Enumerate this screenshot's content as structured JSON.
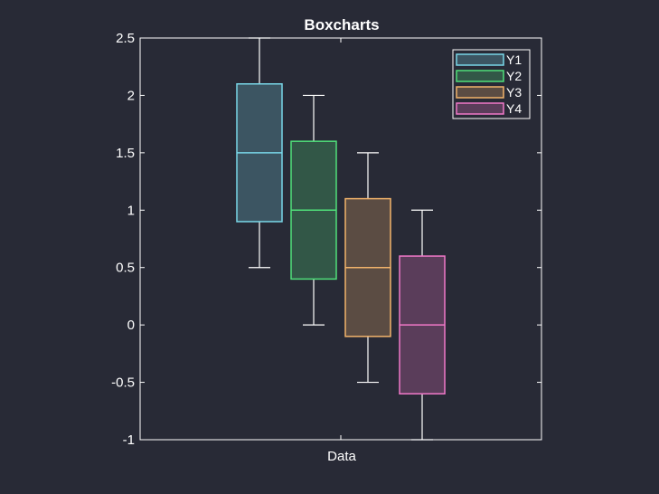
{
  "chart_data": {
    "type": "boxchart",
    "title": "Boxcharts",
    "xlabel": "",
    "ylabel": "",
    "categories": [
      "Data"
    ],
    "ylim": [
      -1,
      2.5
    ],
    "yticks": [
      -1,
      -0.5,
      0,
      0.5,
      1,
      1.5,
      2,
      2.5
    ],
    "ytick_labels": [
      "-1",
      "-0.5",
      "0",
      "0.5",
      "1",
      "1.5",
      "2",
      "2.5"
    ],
    "grid": false,
    "legend_position": "top-right",
    "series": [
      {
        "name": "Y1",
        "color": "#79d7e8",
        "whisker_low": 0.5,
        "q1": 0.9,
        "median": 1.5,
        "q3": 2.1,
        "whisker_high": 2.5
      },
      {
        "name": "Y2",
        "color": "#50e07a",
        "whisker_low": 0.0,
        "q1": 0.4,
        "median": 1.0,
        "q3": 1.6,
        "whisker_high": 2.0
      },
      {
        "name": "Y3",
        "color": "#f2b36b",
        "whisker_low": -0.5,
        "q1": -0.1,
        "median": 0.5,
        "q3": 1.1,
        "whisker_high": 1.5
      },
      {
        "name": "Y4",
        "color": "#f078c8",
        "whisker_low": -1.0,
        "q1": -0.6,
        "median": 0.0,
        "q3": 0.6,
        "whisker_high": 1.0
      }
    ],
    "colors": {
      "background": "#282a36",
      "axes": "#ffffff"
    }
  }
}
